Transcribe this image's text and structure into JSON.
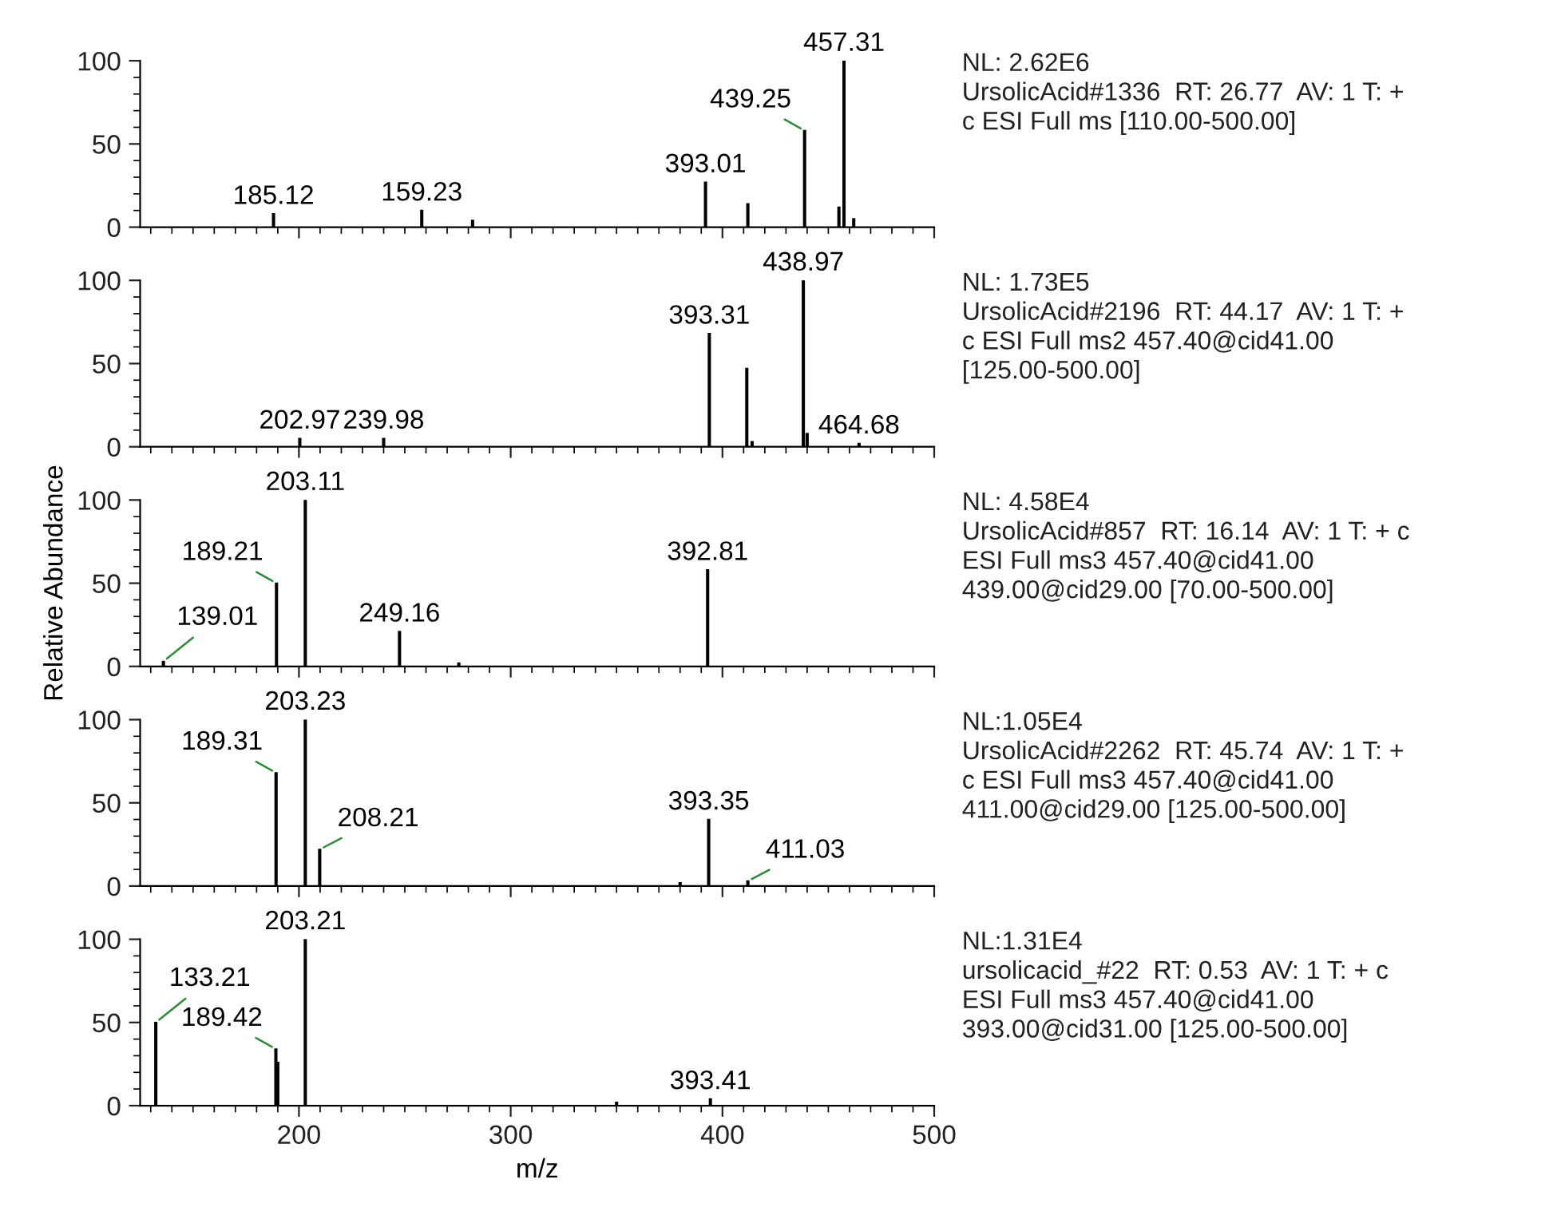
{
  "chart_data": [
    {
      "type": "bar",
      "color": "#000000",
      "x": [
        188,
        258,
        282,
        392,
        412,
        438.8,
        455,
        457.4,
        462
      ],
      "values": [
        8,
        10,
        4,
        27,
        14,
        58,
        12,
        100,
        5
      ],
      "xlim": [
        125,
        500
      ],
      "xticks": [
        200,
        300,
        400,
        500
      ],
      "ylim": [
        0,
        100
      ],
      "yticks": [
        0,
        50,
        100
      ],
      "tick_labels": "y",
      "grid": false,
      "legend": false,
      "annotations": [
        {
          "text": "185.12",
          "x": 188,
          "y": 8
        },
        {
          "text": "159.23",
          "x": 258,
          "y": 10
        },
        {
          "text": "393.01",
          "x": 392,
          "y": 27
        },
        {
          "text": "439.25",
          "x": 438.8,
          "y": 58
        },
        {
          "text": "457.31",
          "x": 457.4,
          "y": 100
        },
        "NL: 2.62E6\nUrsolicAcid#1336  RT: 26.77  AV: 1 T: +\nc ESI Full ms [110.00-500.00]"
      ]
    },
    {
      "type": "bar",
      "color": "#000000",
      "x": [
        200.4,
        240,
        393.8,
        411.5,
        414,
        438.2,
        440,
        464.5
      ],
      "values": [
        5,
        5,
        68,
        47,
        3,
        100,
        8,
        2
      ],
      "xlim": [
        125,
        500
      ],
      "xticks": [
        200,
        300,
        400,
        500
      ],
      "ylim": [
        0,
        100
      ],
      "yticks": [
        0,
        50,
        100
      ],
      "tick_labels": "y",
      "grid": false,
      "legend": false,
      "annotations": [
        {
          "text": "202.97",
          "x": 200.4,
          "y": 5
        },
        {
          "text": "239.98",
          "x": 240,
          "y": 5
        },
        {
          "text": "393.31",
          "x": 393.8,
          "y": 68
        },
        {
          "text": "438.97",
          "x": 438.2,
          "y": 100
        },
        {
          "text": "464.68",
          "x": 464.5,
          "y": 2
        },
        "NL: 1.73E5\nUrsolicAcid#2196  RT: 44.17  AV: 1 T: +\nc ESI Full ms2 457.40@cid41.00\n[125.00-500.00]"
      ]
    },
    {
      "type": "bar",
      "color": "#000000",
      "x": [
        136,
        189.4,
        203,
        247.5,
        275.5,
        393
      ],
      "values": [
        3,
        50,
        100,
        21,
        2,
        58
      ],
      "xlim": [
        125,
        500
      ],
      "xticks": [
        200,
        300,
        400,
        500
      ],
      "ylim": [
        0,
        100
      ],
      "yticks": [
        0,
        50,
        100
      ],
      "tick_labels": "y",
      "grid": false,
      "legend": false,
      "ylabel": "Relative Abundance",
      "annotations": [
        {
          "text": "139.01",
          "x": 136,
          "y": 3
        },
        {
          "text": "189.21",
          "x": 189.4,
          "y": 50
        },
        {
          "text": "203.11",
          "x": 203,
          "y": 100
        },
        {
          "text": "249.16",
          "x": 247.5,
          "y": 21
        },
        {
          "text": "392.81",
          "x": 393,
          "y": 58
        },
        "NL: 4.58E4\nUrsolicAcid#857  RT: 16.14  AV: 1 T: + c\nESI Full ms3 457.40@cid41.00\n439.00@cid29.00 [70.00-500.00]"
      ]
    },
    {
      "type": "bar",
      "color": "#000000",
      "x": [
        189.2,
        203,
        209.8,
        380,
        393.5,
        412
      ],
      "values": [
        68,
        100,
        22,
        2,
        40,
        3
      ],
      "xlim": [
        125,
        500
      ],
      "xticks": [
        200,
        300,
        400,
        500
      ],
      "ylim": [
        0,
        100
      ],
      "yticks": [
        0,
        50,
        100
      ],
      "tick_labels": "y",
      "grid": false,
      "legend": false,
      "annotations": [
        {
          "text": "189.31",
          "x": 189.2,
          "y": 68
        },
        {
          "text": "203.23",
          "x": 203,
          "y": 100
        },
        {
          "text": "208.21",
          "x": 209.8,
          "y": 22
        },
        {
          "text": "393.35",
          "x": 393.5,
          "y": 40
        },
        {
          "text": "411.03",
          "x": 412,
          "y": 3
        },
        "NL:1.05E4\nUrsolicAcid#2262  RT: 45.74  AV: 1 T: +\nc ESI Full ms3 457.40@cid41.00\n411.00@cid29.00 [125.00-500.00]"
      ]
    },
    {
      "type": "bar",
      "color": "#000000",
      "x": [
        132.4,
        189.1,
        190,
        203,
        350,
        394.3
      ],
      "values": [
        50,
        34,
        26,
        100,
        2,
        4
      ],
      "xlim": [
        125,
        500
      ],
      "xticks": [
        200,
        300,
        400,
        500
      ],
      "ylim": [
        0,
        100
      ],
      "yticks": [
        0,
        50,
        100
      ],
      "grid": false,
      "legend": false,
      "xlabel": "m/z",
      "annotations": [
        {
          "text": "133.21",
          "x": 132.4,
          "y": 50
        },
        {
          "text": "189.42",
          "x": 189.1,
          "y": 34
        },
        {
          "text": "203.21",
          "x": 203,
          "y": 100
        },
        {
          "text": "393.41",
          "x": 394.3,
          "y": 4
        },
        "NL:1.31E4\nursolicacid_#22  RT: 0.53  AV: 1 T: + c\nESI Full ms3 457.40@cid41.00\n393.00@cid31.00 [125.00-500.00]"
      ]
    }
  ]
}
